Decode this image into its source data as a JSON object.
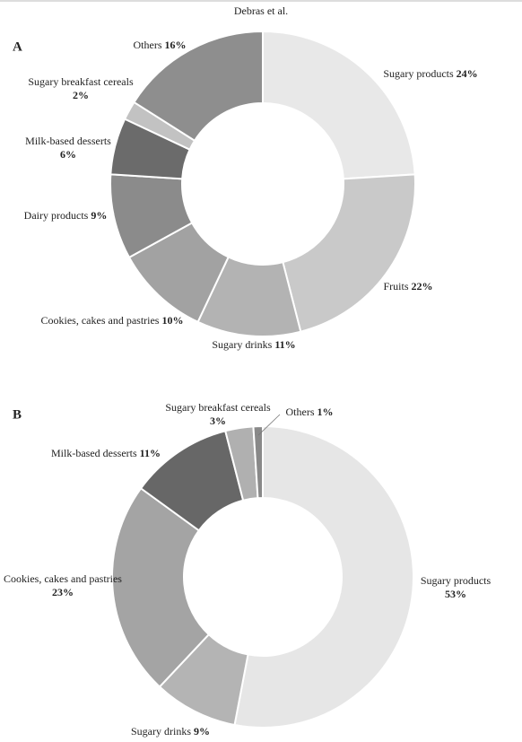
{
  "header": {
    "title": "Debras et al."
  },
  "chart_data": [
    {
      "type": "donut",
      "title": "A",
      "categories": [
        "Sugary products",
        "Fruits",
        "Sugary drinks",
        "Cookies, cakes and pastries",
        "Dairy products",
        "Milk-based desserts",
        "Sugary breakfast cereals",
        "Others"
      ],
      "values": [
        24,
        22,
        11,
        10,
        9,
        6,
        2,
        16
      ],
      "value_labels": [
        "24%",
        "22%",
        "11%",
        "10%",
        "9%",
        "6%",
        "2%",
        "16%"
      ],
      "colors": [
        "#e8e8e8",
        "#c9c9c9",
        "#b3b3b3",
        "#a2a2a2",
        "#8b8b8b",
        "#6b6b6b",
        "#c2c2c2",
        "#8e8e8e"
      ]
    },
    {
      "type": "donut",
      "title": "B",
      "categories": [
        "Sugary products",
        "Sugary drinks",
        "Cookies, cakes and pastries",
        "Milk-based desserts",
        "Sugary breakfast cereals",
        "Others"
      ],
      "values": [
        53,
        9,
        23,
        11,
        3,
        1
      ],
      "value_labels": [
        "53%",
        "9%",
        "23%",
        "11%",
        "3%",
        "1%"
      ],
      "colors": [
        "#e6e6e6",
        "#b4b4b4",
        "#a4a4a4",
        "#676767",
        "#b0b0b0",
        "#898989"
      ]
    }
  ]
}
